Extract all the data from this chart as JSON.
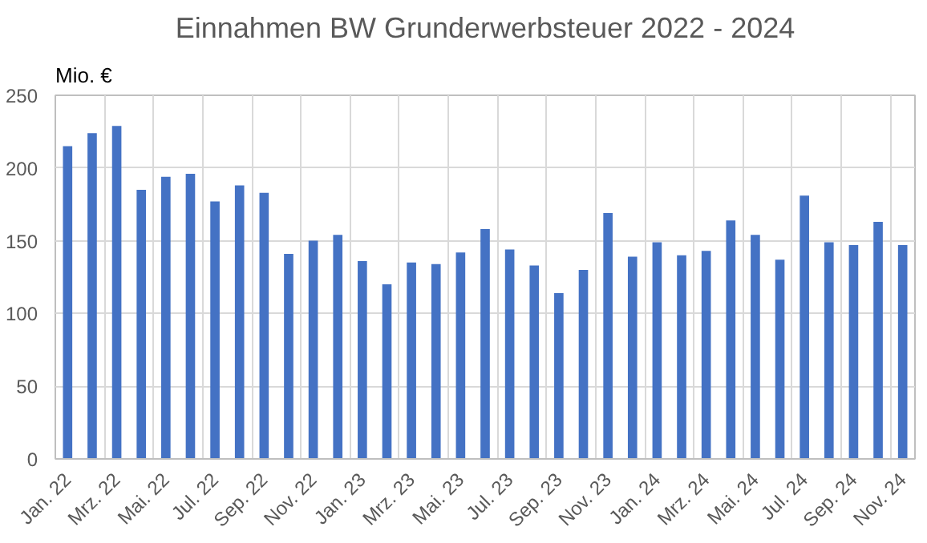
{
  "chart_data": {
    "type": "bar",
    "title": "Einnahmen BW Grunderwerbsteuer 2022 - 2024",
    "ylabel": "Mio. €",
    "categories": [
      "Jan. 22",
      null,
      "Mrz. 22",
      null,
      "Mai. 22",
      null,
      "Jul. 22",
      null,
      "Sep. 22",
      null,
      "Nov. 22",
      null,
      "Jan. 23",
      null,
      "Mrz. 23",
      null,
      "Mai. 23",
      null,
      "Jul. 23",
      null,
      "Sep. 23",
      null,
      "Nov. 23",
      null,
      "Jan. 24",
      null,
      "Mrz. 24",
      null,
      "Mai. 24",
      null,
      "Jul. 24",
      null,
      "Sep. 24",
      null,
      "Nov. 24"
    ],
    "values": [
      215,
      224,
      229,
      185,
      194,
      196,
      177,
      188,
      183,
      141,
      150,
      154,
      136,
      120,
      135,
      134,
      142,
      158,
      144,
      133,
      114,
      130,
      169,
      139,
      149,
      140,
      143,
      164,
      154,
      137,
      181,
      149,
      147,
      163,
      147
    ],
    "color": "#4472c4",
    "ylim": [
      0,
      250
    ],
    "yticks": [
      0,
      50,
      100,
      150,
      200,
      250
    ],
    "grid": true
  }
}
